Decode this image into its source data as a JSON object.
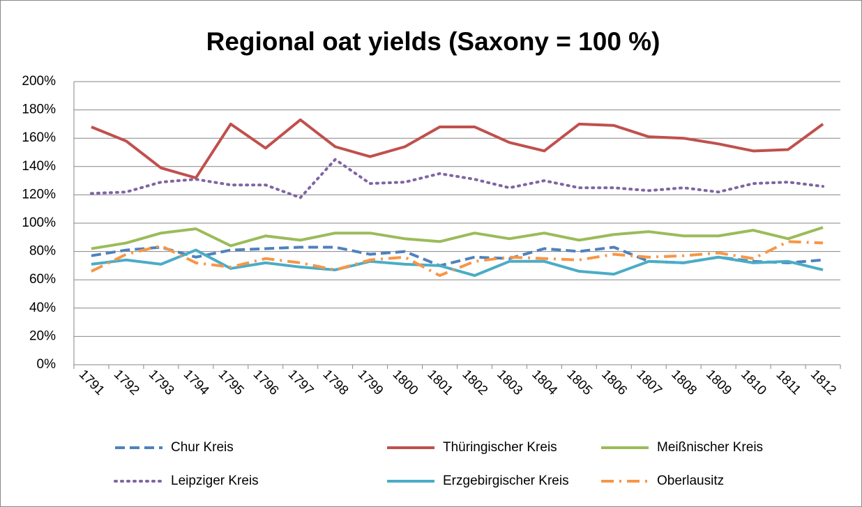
{
  "chart_data": {
    "type": "line",
    "title": "Regional oat yields (Saxony = 100 %)",
    "categories": [
      "1791",
      "1792",
      "1793",
      "1794",
      "1795",
      "1796",
      "1797",
      "1798",
      "1799",
      "1800",
      "1801",
      "1802",
      "1803",
      "1804",
      "1805",
      "1806",
      "1807",
      "1808",
      "1809",
      "1810",
      "1811",
      "1812"
    ],
    "ylim": [
      0,
      200
    ],
    "yticks": [
      {
        "value": 0,
        "label": "0%"
      },
      {
        "value": 20,
        "label": "20%"
      },
      {
        "value": 40,
        "label": "40%"
      },
      {
        "value": 60,
        "label": "60%"
      },
      {
        "value": 80,
        "label": "80%"
      },
      {
        "value": 100,
        "label": "100%"
      },
      {
        "value": 120,
        "label": "120%"
      },
      {
        "value": 140,
        "label": "140%"
      },
      {
        "value": 160,
        "label": "160%"
      },
      {
        "value": 180,
        "label": "180%"
      },
      {
        "value": 200,
        "label": "200%"
      }
    ],
    "grid": true,
    "legend": "bottom",
    "series": [
      {
        "name": "Chur Kreis",
        "color": "#4f81bd",
        "line_style": "dashed",
        "values": [
          77,
          81,
          83,
          76,
          81,
          82,
          83,
          83,
          78,
          80,
          70,
          76,
          75,
          82,
          80,
          83,
          73,
          72,
          76,
          73,
          72,
          74
        ]
      },
      {
        "name": "Thüringischer Kreis",
        "color": "#c0504d",
        "line_style": "solid",
        "values": [
          168,
          158,
          139,
          132,
          170,
          153,
          173,
          154,
          147,
          154,
          168,
          168,
          157,
          151,
          170,
          169,
          161,
          160,
          156,
          151,
          152,
          170
        ]
      },
      {
        "name": "Meißnischer Kreis",
        "color": "#9bbb59",
        "line_style": "solid",
        "values": [
          82,
          86,
          93,
          96,
          84,
          91,
          88,
          93,
          93,
          89,
          87,
          93,
          89,
          93,
          88,
          92,
          94,
          91,
          91,
          95,
          89,
          97
        ]
      },
      {
        "name": "Leipziger Kreis",
        "color": "#8064a2",
        "line_style": "dotted",
        "values": [
          121,
          122,
          129,
          131,
          127,
          127,
          118,
          145,
          128,
          129,
          135,
          131,
          125,
          130,
          125,
          125,
          123,
          125,
          122,
          128,
          129,
          126
        ]
      },
      {
        "name": "Erzgebirgischer Kreis",
        "color": "#4bacc6",
        "line_style": "solid",
        "values": [
          71,
          74,
          71,
          81,
          68,
          72,
          69,
          67,
          73,
          71,
          70,
          63,
          73,
          73,
          66,
          64,
          73,
          72,
          76,
          72,
          73,
          67
        ]
      },
      {
        "name": "Oberlausitz",
        "color": "#f79646",
        "line_style": "dashdot",
        "values": [
          66,
          78,
          84,
          72,
          69,
          75,
          72,
          67,
          74,
          76,
          63,
          73,
          76,
          75,
          74,
          78,
          76,
          77,
          79,
          75,
          87,
          86
        ]
      }
    ]
  }
}
